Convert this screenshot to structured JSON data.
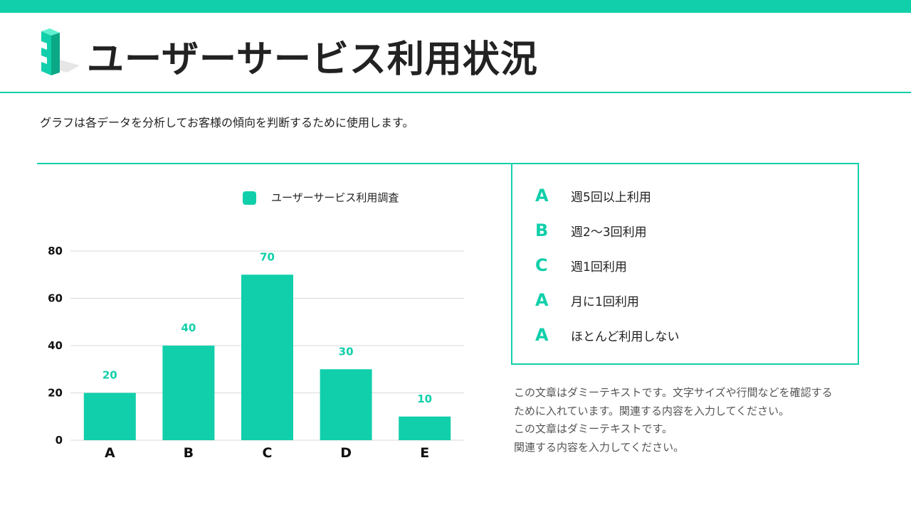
{
  "title": "ユーザーサービス利用状況",
  "subtitle": "グラフは各データを分析してお客様の傾向を判断するために使用します。",
  "colors": {
    "accent": "#11cfaa",
    "text": "#222222",
    "grid": "#d9d9d9",
    "note": "#555555"
  },
  "chart_data": {
    "type": "bar",
    "legend": "ユーザーサービス利用調査",
    "legend_position": "top-center",
    "categories": [
      "A",
      "B",
      "C",
      "D",
      "E"
    ],
    "series": [
      {
        "name": "ユーザーサービス利用調査",
        "values": [
          20,
          40,
          70,
          30,
          10
        ]
      }
    ],
    "yticks": [
      0,
      20,
      40,
      60,
      80
    ],
    "ylim": [
      0,
      80
    ],
    "grid": true,
    "data_labels": true
  },
  "legend_panel": {
    "items": [
      {
        "letter": "A",
        "label": "週5回以上利用"
      },
      {
        "letter": "B",
        "label": "週2〜3回利用"
      },
      {
        "letter": "C",
        "label": "週1回利用"
      },
      {
        "letter": "A",
        "label": "月に1回利用"
      },
      {
        "letter": "A",
        "label": "ほとんど利用しない"
      }
    ]
  },
  "note": {
    "lines": [
      "この文章はダミーテキストです。文字サイズや行間などを確認する",
      "ために入れています。関連する内容を入力してください。",
      "この文章はダミーテキストです。",
      "関連する内容を入力してください。"
    ]
  }
}
